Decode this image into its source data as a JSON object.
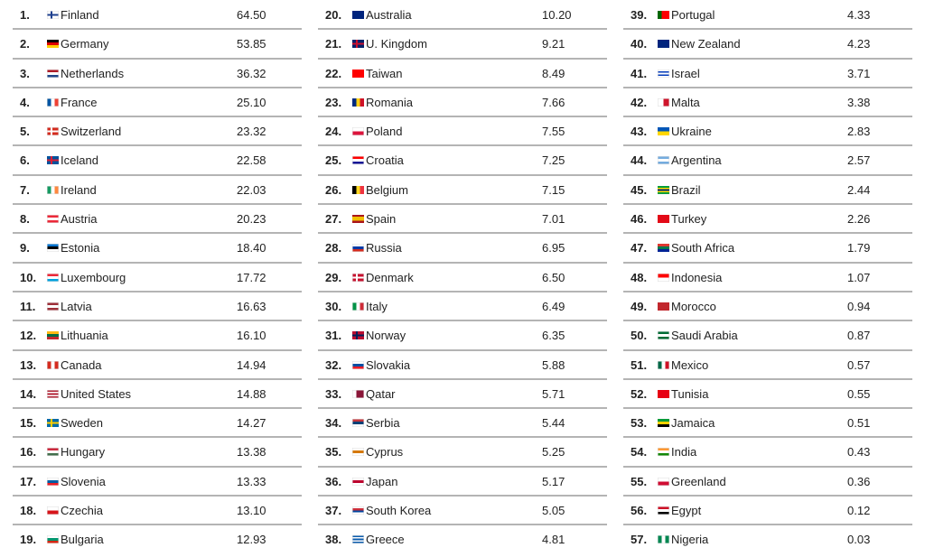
{
  "columns": [
    {
      "rows": [
        {
          "rank": "1.",
          "country": "Finland",
          "value": "64.50",
          "flag": {
            "dir": "cross",
            "colors": [
              "#ffffff",
              "#1d3f8e"
            ]
          }
        },
        {
          "rank": "2.",
          "country": "Germany",
          "value": "53.85",
          "flag": {
            "dir": "h",
            "colors": [
              "#000000",
              "#dd0000",
              "#ffce00"
            ]
          }
        },
        {
          "rank": "3.",
          "country": "Netherlands",
          "value": "36.32",
          "flag": {
            "dir": "h",
            "colors": [
              "#ae1c28",
              "#ffffff",
              "#21468b"
            ]
          }
        },
        {
          "rank": "4.",
          "country": "France",
          "value": "25.10",
          "flag": {
            "dir": "v",
            "colors": [
              "#0055a4",
              "#ffffff",
              "#ef4135"
            ]
          }
        },
        {
          "rank": "5.",
          "country": "Switzerland",
          "value": "23.32",
          "flag": {
            "dir": "cross",
            "colors": [
              "#d52b1e",
              "#ffffff"
            ]
          }
        },
        {
          "rank": "6.",
          "country": "Iceland",
          "value": "22.58",
          "flag": {
            "dir": "cross",
            "colors": [
              "#02529c",
              "#dc1e35"
            ]
          }
        },
        {
          "rank": "7.",
          "country": "Ireland",
          "value": "22.03",
          "flag": {
            "dir": "v",
            "colors": [
              "#169b62",
              "#ffffff",
              "#ff883e"
            ]
          }
        },
        {
          "rank": "8.",
          "country": "Austria",
          "value": "20.23",
          "flag": {
            "dir": "h",
            "colors": [
              "#ed2939",
              "#ffffff",
              "#ed2939"
            ]
          }
        },
        {
          "rank": "9.",
          "country": "Estonia",
          "value": "18.40",
          "flag": {
            "dir": "h",
            "colors": [
              "#0072ce",
              "#000000",
              "#ffffff"
            ]
          }
        },
        {
          "rank": "10.",
          "country": "Luxembourg",
          "value": "17.72",
          "flag": {
            "dir": "h",
            "colors": [
              "#ed2939",
              "#ffffff",
              "#00a1de"
            ]
          }
        },
        {
          "rank": "11.",
          "country": "Latvia",
          "value": "16.63",
          "flag": {
            "dir": "h",
            "colors": [
              "#9e3039",
              "#ffffff",
              "#9e3039"
            ]
          }
        },
        {
          "rank": "12.",
          "country": "Lithuania",
          "value": "16.10",
          "flag": {
            "dir": "h",
            "colors": [
              "#fdb913",
              "#006a44",
              "#c1272d"
            ]
          }
        },
        {
          "rank": "13.",
          "country": "Canada",
          "value": "14.94",
          "flag": {
            "dir": "v",
            "colors": [
              "#d52b1e",
              "#ffffff",
              "#d52b1e"
            ]
          }
        },
        {
          "rank": "14.",
          "country": "United States",
          "value": "14.88",
          "flag": {
            "dir": "h",
            "colors": [
              "#b22234",
              "#ffffff",
              "#b22234",
              "#ffffff",
              "#b22234"
            ]
          }
        },
        {
          "rank": "15.",
          "country": "Sweden",
          "value": "14.27",
          "flag": {
            "dir": "cross",
            "colors": [
              "#006aa7",
              "#fecc00"
            ]
          }
        },
        {
          "rank": "16.",
          "country": "Hungary",
          "value": "13.38",
          "flag": {
            "dir": "h",
            "colors": [
              "#cd2a3e",
              "#ffffff",
              "#436f4d"
            ]
          }
        },
        {
          "rank": "17.",
          "country": "Slovenia",
          "value": "13.33",
          "flag": {
            "dir": "h",
            "colors": [
              "#ffffff",
              "#005da4",
              "#ed1c24"
            ]
          }
        },
        {
          "rank": "18.",
          "country": "Czechia",
          "value": "13.10",
          "flag": {
            "dir": "h",
            "colors": [
              "#ffffff",
              "#d7141a"
            ]
          }
        },
        {
          "rank": "19.",
          "country": "Bulgaria",
          "value": "12.93",
          "flag": {
            "dir": "h",
            "colors": [
              "#ffffff",
              "#00966e",
              "#d62612"
            ]
          }
        }
      ]
    },
    {
      "rows": [
        {
          "rank": "20.",
          "country": "Australia",
          "value": "10.20",
          "flag": {
            "dir": "h",
            "colors": [
              "#00247d"
            ]
          }
        },
        {
          "rank": "21.",
          "country": "U. Kingdom",
          "value": "9.21",
          "flag": {
            "dir": "cross",
            "colors": [
              "#012169",
              "#c8102e"
            ]
          }
        },
        {
          "rank": "22.",
          "country": "Taiwan",
          "value": "8.49",
          "flag": {
            "dir": "h",
            "colors": [
              "#fe0000"
            ]
          }
        },
        {
          "rank": "23.",
          "country": "Romania",
          "value": "7.66",
          "flag": {
            "dir": "v",
            "colors": [
              "#002b7f",
              "#fcd116",
              "#ce1126"
            ]
          }
        },
        {
          "rank": "24.",
          "country": "Poland",
          "value": "7.55",
          "flag": {
            "dir": "h",
            "colors": [
              "#ffffff",
              "#dc143c"
            ]
          }
        },
        {
          "rank": "25.",
          "country": "Croatia",
          "value": "7.25",
          "flag": {
            "dir": "h",
            "colors": [
              "#ff0000",
              "#ffffff",
              "#171796"
            ]
          }
        },
        {
          "rank": "26.",
          "country": "Belgium",
          "value": "7.15",
          "flag": {
            "dir": "v",
            "colors": [
              "#000000",
              "#fdda24",
              "#ef3340"
            ]
          }
        },
        {
          "rank": "27.",
          "country": "Spain",
          "value": "7.01",
          "flag": {
            "dir": "h",
            "colors": [
              "#aa151b",
              "#f1bf00",
              "#f1bf00",
              "#aa151b"
            ]
          }
        },
        {
          "rank": "28.",
          "country": "Russia",
          "value": "6.95",
          "flag": {
            "dir": "h",
            "colors": [
              "#ffffff",
              "#0039a6",
              "#d52b1e"
            ]
          }
        },
        {
          "rank": "29.",
          "country": "Denmark",
          "value": "6.50",
          "flag": {
            "dir": "cross",
            "colors": [
              "#c8102e",
              "#ffffff"
            ]
          }
        },
        {
          "rank": "30.",
          "country": "Italy",
          "value": "6.49",
          "flag": {
            "dir": "v",
            "colors": [
              "#009246",
              "#ffffff",
              "#ce2b37"
            ]
          }
        },
        {
          "rank": "31.",
          "country": "Norway",
          "value": "6.35",
          "flag": {
            "dir": "cross",
            "colors": [
              "#ba0c2f",
              "#00205b"
            ]
          }
        },
        {
          "rank": "32.",
          "country": "Slovakia",
          "value": "5.88",
          "flag": {
            "dir": "h",
            "colors": [
              "#ffffff",
              "#0b4ea2",
              "#ee1c25"
            ]
          }
        },
        {
          "rank": "33.",
          "country": "Qatar",
          "value": "5.71",
          "flag": {
            "dir": "v",
            "colors": [
              "#ffffff",
              "#8a1538",
              "#8a1538"
            ]
          }
        },
        {
          "rank": "34.",
          "country": "Serbia",
          "value": "5.44",
          "flag": {
            "dir": "h",
            "colors": [
              "#c6363c",
              "#0c4076",
              "#ffffff"
            ]
          }
        },
        {
          "rank": "35.",
          "country": "Cyprus",
          "value": "5.25",
          "flag": {
            "dir": "h",
            "colors": [
              "#ffffff",
              "#d57800",
              "#ffffff"
            ]
          }
        },
        {
          "rank": "36.",
          "country": "Japan",
          "value": "5.17",
          "flag": {
            "dir": "h",
            "colors": [
              "#ffffff",
              "#bc002d",
              "#ffffff"
            ]
          }
        },
        {
          "rank": "37.",
          "country": "South Korea",
          "value": "5.05",
          "flag": {
            "dir": "h",
            "colors": [
              "#ffffff",
              "#cd2e3a",
              "#0047a0",
              "#ffffff"
            ]
          }
        },
        {
          "rank": "38.",
          "country": "Greece",
          "value": "4.81",
          "flag": {
            "dir": "h",
            "colors": [
              "#0d5eaf",
              "#ffffff",
              "#0d5eaf",
              "#ffffff",
              "#0d5eaf"
            ]
          }
        }
      ]
    },
    {
      "rows": [
        {
          "rank": "39.",
          "country": "Portugal",
          "value": "4.33",
          "flag": {
            "dir": "v",
            "colors": [
              "#006600",
              "#ff0000",
              "#ff0000"
            ]
          }
        },
        {
          "rank": "40.",
          "country": "New Zealand",
          "value": "4.23",
          "flag": {
            "dir": "h",
            "colors": [
              "#00247d"
            ]
          }
        },
        {
          "rank": "41.",
          "country": "Israel",
          "value": "3.71",
          "flag": {
            "dir": "h",
            "colors": [
              "#ffffff",
              "#0038b8",
              "#ffffff",
              "#0038b8",
              "#ffffff"
            ]
          }
        },
        {
          "rank": "42.",
          "country": "Malta",
          "value": "3.38",
          "flag": {
            "dir": "v",
            "colors": [
              "#ffffff",
              "#cf142b"
            ]
          }
        },
        {
          "rank": "43.",
          "country": "Ukraine",
          "value": "2.83",
          "flag": {
            "dir": "h",
            "colors": [
              "#0057b7",
              "#ffd700"
            ]
          }
        },
        {
          "rank": "44.",
          "country": "Argentina",
          "value": "2.57",
          "flag": {
            "dir": "h",
            "colors": [
              "#74acdf",
              "#ffffff",
              "#74acdf"
            ]
          }
        },
        {
          "rank": "45.",
          "country": "Brazil",
          "value": "2.44",
          "flag": {
            "dir": "h",
            "colors": [
              "#009c3b",
              "#ffdf00",
              "#002776",
              "#ffdf00",
              "#009c3b"
            ]
          }
        },
        {
          "rank": "46.",
          "country": "Turkey",
          "value": "2.26",
          "flag": {
            "dir": "h",
            "colors": [
              "#e30a17"
            ]
          }
        },
        {
          "rank": "47.",
          "country": "South Africa",
          "value": "1.79",
          "flag": {
            "dir": "h",
            "colors": [
              "#de3831",
              "#007a4d",
              "#002395"
            ]
          }
        },
        {
          "rank": "48.",
          "country": "Indonesia",
          "value": "1.07",
          "flag": {
            "dir": "h",
            "colors": [
              "#ff0000",
              "#ffffff"
            ]
          }
        },
        {
          "rank": "49.",
          "country": "Morocco",
          "value": "0.94",
          "flag": {
            "dir": "h",
            "colors": [
              "#c1272d"
            ]
          }
        },
        {
          "rank": "50.",
          "country": "Saudi Arabia",
          "value": "0.87",
          "flag": {
            "dir": "h",
            "colors": [
              "#006c35",
              "#ffffff",
              "#006c35"
            ]
          }
        },
        {
          "rank": "51.",
          "country": "Mexico",
          "value": "0.57",
          "flag": {
            "dir": "v",
            "colors": [
              "#006847",
              "#ffffff",
              "#ce1126"
            ]
          }
        },
        {
          "rank": "52.",
          "country": "Tunisia",
          "value": "0.55",
          "flag": {
            "dir": "h",
            "colors": [
              "#e70013"
            ]
          }
        },
        {
          "rank": "53.",
          "country": "Jamaica",
          "value": "0.51",
          "flag": {
            "dir": "h",
            "colors": [
              "#009b3a",
              "#fed100",
              "#000000"
            ]
          }
        },
        {
          "rank": "54.",
          "country": "India",
          "value": "0.43",
          "flag": {
            "dir": "h",
            "colors": [
              "#ff9933",
              "#ffffff",
              "#138808"
            ]
          }
        },
        {
          "rank": "55.",
          "country": "Greenland",
          "value": "0.36",
          "flag": {
            "dir": "h",
            "colors": [
              "#ffffff",
              "#d00c33"
            ]
          }
        },
        {
          "rank": "56.",
          "country": "Egypt",
          "value": "0.12",
          "flag": {
            "dir": "h",
            "colors": [
              "#ce1126",
              "#ffffff",
              "#000000"
            ]
          }
        },
        {
          "rank": "57.",
          "country": "Nigeria",
          "value": "0.03",
          "flag": {
            "dir": "v",
            "colors": [
              "#008751",
              "#ffffff",
              "#008751"
            ]
          }
        }
      ]
    }
  ]
}
